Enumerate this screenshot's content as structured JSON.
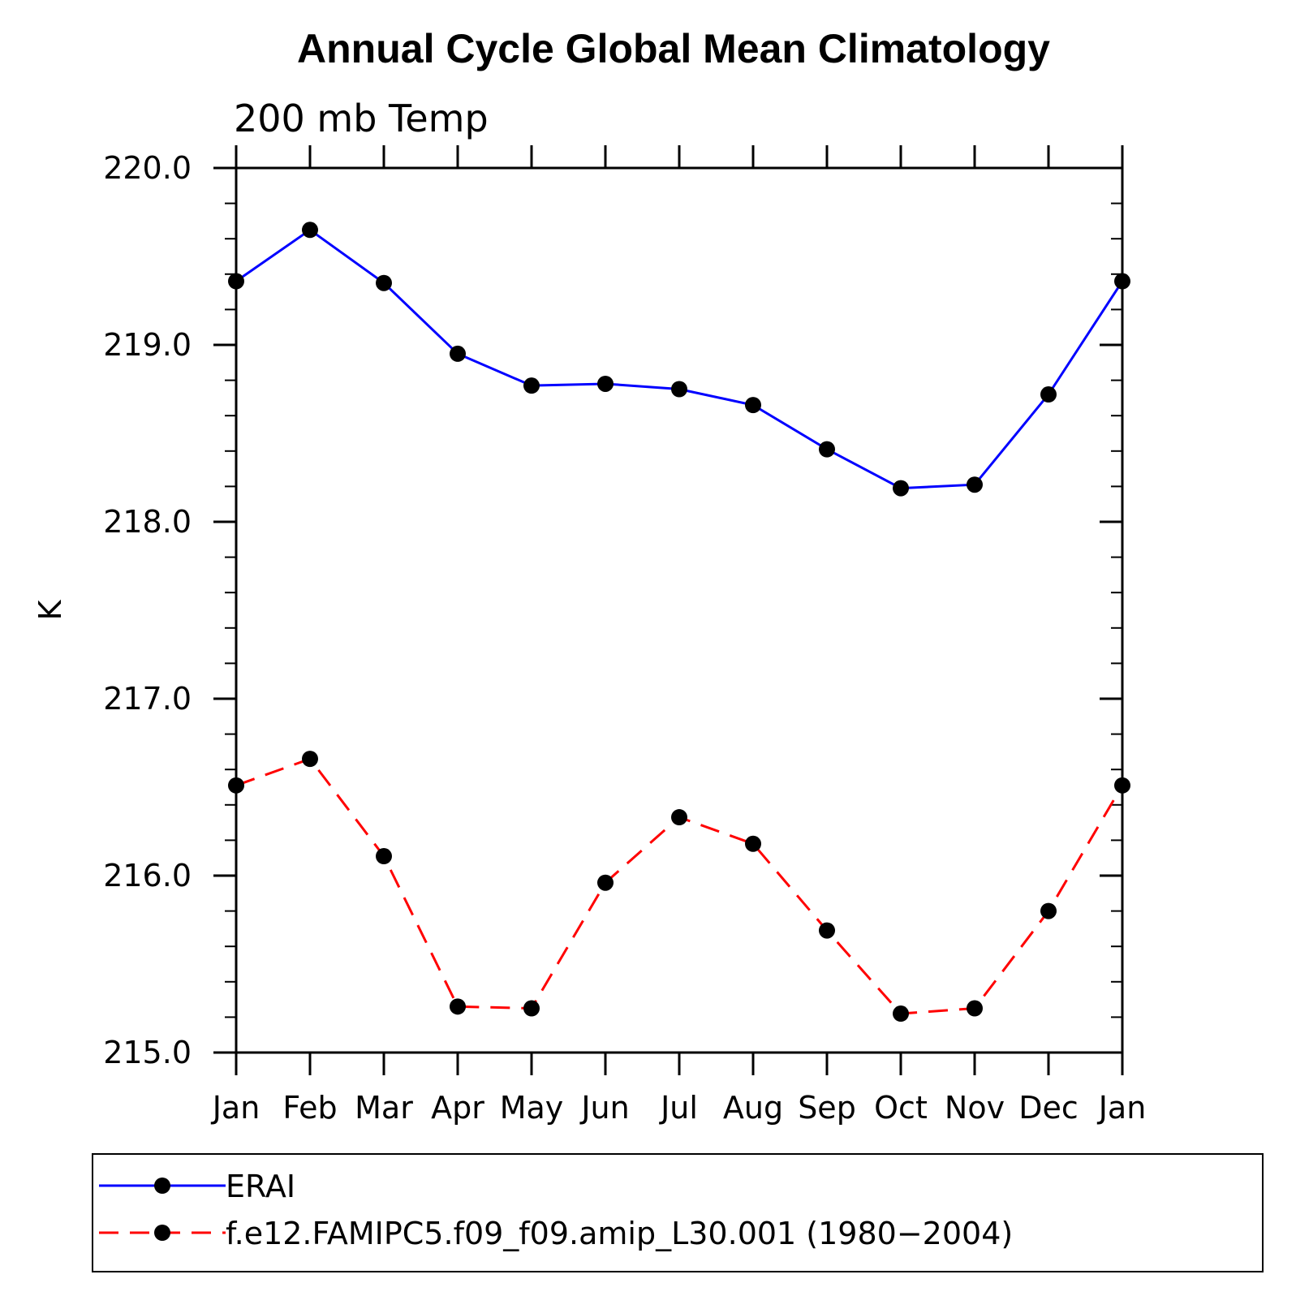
{
  "chart_data": {
    "type": "line",
    "title": "Annual Cycle Global Mean Climatology",
    "subtitle": "200 mb Temp",
    "ylabel": "K",
    "xlabel": "",
    "categories": [
      "Jan",
      "Feb",
      "Mar",
      "Apr",
      "May",
      "Jun",
      "Jul",
      "Aug",
      "Sep",
      "Oct",
      "Nov",
      "Dec",
      "Jan"
    ],
    "ylim": [
      215.0,
      220.0
    ],
    "yticks": [
      "215.0",
      "216.0",
      "217.0",
      "218.0",
      "219.0",
      "220.0"
    ],
    "y_minor_step": 0.2,
    "series": [
      {
        "name": "ERAI",
        "color": "#0000ff",
        "dash": "solid",
        "marker": "filled-circle",
        "values": [
          219.36,
          219.65,
          219.35,
          218.95,
          218.77,
          218.78,
          218.75,
          218.66,
          218.41,
          218.19,
          218.21,
          218.72,
          219.36
        ]
      },
      {
        "name": "f.e12.FAMIPC5.f09_f09.amip_L30.001 (1980−2004)",
        "color": "#ff0000",
        "dash": "dashed",
        "marker": "filled-circle",
        "values": [
          216.51,
          216.66,
          216.11,
          215.26,
          215.25,
          215.96,
          216.33,
          216.18,
          215.69,
          215.22,
          215.25,
          215.8,
          216.51
        ]
      }
    ],
    "legend": "bottom",
    "grid": false
  }
}
